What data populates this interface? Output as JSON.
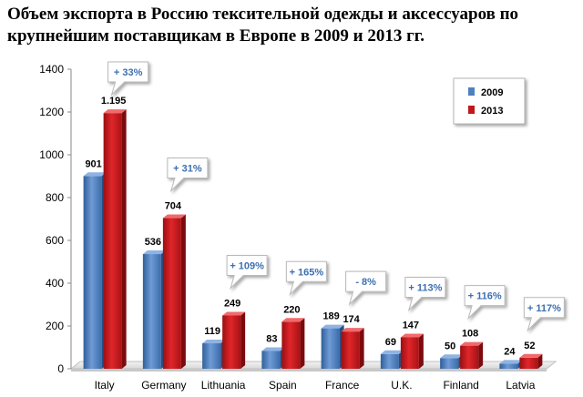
{
  "title": {
    "line1": "Объем экспорта в Россию тексительной одежды и аксессуаров по",
    "line2": "крупнейшим поставщикам в Европе в 2009 и 2013 гг."
  },
  "chart_data": {
    "type": "bar",
    "title": "Объем экспорта в Россию тексительной одежды и аксессуаров по крупнейшим поставщикам в Европе в 2009 и 2013 гг.",
    "categories": [
      "Italy",
      "Germany",
      "Lithuania",
      "Spain",
      "France",
      "U.K.",
      "Finland",
      "Latvia"
    ],
    "series": [
      {
        "name": "2009",
        "color": "#4f81bd",
        "values": [
          901,
          536,
          119,
          83,
          189,
          69,
          50,
          24
        ],
        "labels": [
          "901",
          "536",
          "119",
          "83",
          "189",
          "69",
          "50",
          "24"
        ]
      },
      {
        "name": "2013",
        "color": "#c0181a",
        "values": [
          1195,
          704,
          249,
          220,
          174,
          147,
          108,
          52
        ],
        "labels": [
          "1.195",
          "704",
          "249",
          "220",
          "174",
          "147",
          "108",
          "52"
        ]
      }
    ],
    "changes": [
      "+ 33%",
      "+ 31%",
      "+ 109%",
      "+ 165%",
      "- 8%",
      "+ 113%",
      "+ 116%",
      "+ 117%"
    ],
    "ylim": [
      0,
      1400
    ],
    "yticks": [
      "0",
      "200",
      "400",
      "600",
      "800",
      "1000",
      "1200",
      "1400"
    ],
    "legend_position": "top-right",
    "grid": false
  }
}
